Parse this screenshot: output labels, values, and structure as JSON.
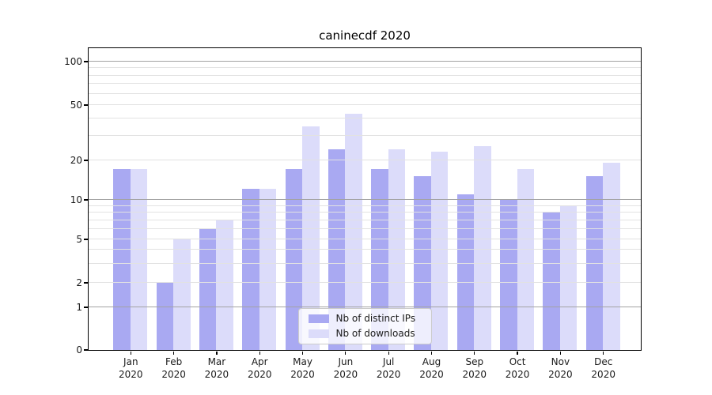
{
  "title": "caninecdf 2020",
  "chart_data": {
    "type": "bar",
    "title": "caninecdf 2020",
    "categories": [
      "Jan 2020",
      "Feb 2020",
      "Mar 2020",
      "Apr 2020",
      "May 2020",
      "Jun 2020",
      "Jul 2020",
      "Aug 2020",
      "Sep 2020",
      "Oct 2020",
      "Nov 2020",
      "Dec 2020"
    ],
    "series": [
      {
        "name": "Nb of distinct IPs",
        "color": "#a9a9f2",
        "values": [
          17,
          2,
          6,
          12,
          17,
          24,
          17,
          15,
          11,
          10,
          8,
          15
        ]
      },
      {
        "name": "Nb of downloads",
        "color": "#dcdcfa",
        "values": [
          17,
          5,
          7,
          12,
          35,
          43,
          24,
          23,
          25,
          17,
          9,
          19
        ]
      }
    ],
    "yscale": "symlog",
    "y_tick_labels": [
      "0",
      "1",
      "2",
      "5",
      "10",
      "20",
      "50",
      "100"
    ],
    "y_decade_gridlines": [
      1,
      10,
      100
    ],
    "y_minor_gridlines": [
      3,
      4,
      6,
      7,
      8,
      9,
      30,
      40,
      60,
      70,
      80,
      90
    ],
    "ylim": [
      0,
      110
    ],
    "grid": true,
    "legend_position": "lower center"
  },
  "colors": {
    "bar_distinct_ips": "#a9a9f2",
    "bar_downloads": "#dcdcfa",
    "grid_decade": "#a3a3a3",
    "grid_minor": "#e2e2e2",
    "axis": "#000000",
    "text": "#1a1a1a",
    "legend_border": "#cccccc",
    "legend_bg": "rgba(255,255,255,0.8)"
  }
}
